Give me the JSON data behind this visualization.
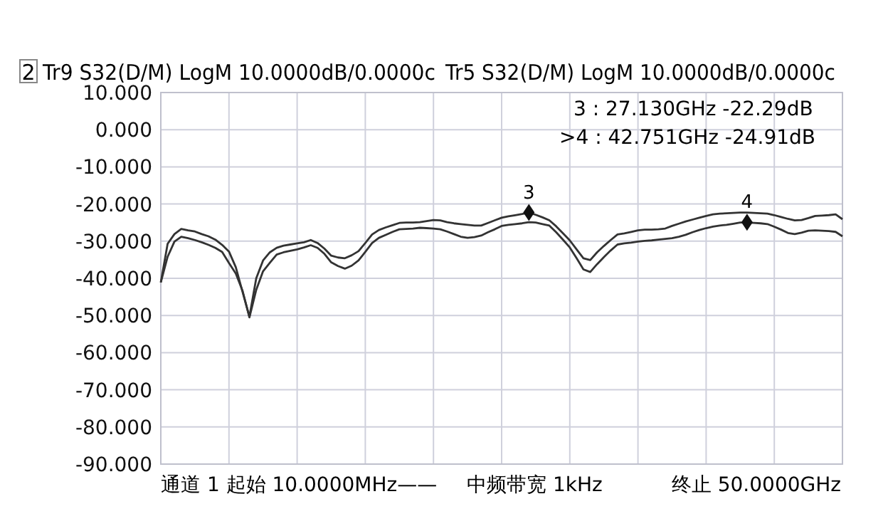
{
  "chart_data": {
    "type": "line",
    "annotations": [
      "2",
      "Tr9 S32(D/M) LogM 10.0000dB/0.0000c",
      "Tr5 S32(D/M) LogM 10.0000dB/0.0000c",
      "3 : 27.130GHz -22.29dB",
      ">4 : 42.751GHz -24.91dB",
      "通道 1 起始 10.0000MHz——",
      "中频带宽 1kHz",
      "终止 50.0000GHz",
      "3",
      "4"
    ],
    "categories": [
      null,
      null,
      null,
      null,
      null,
      null,
      null,
      null,
      null,
      null,
      null,
      null,
      null,
      null,
      null,
      null,
      null,
      null,
      null,
      null,
      null,
      null,
      null,
      null,
      null,
      null,
      null,
      null,
      null,
      null,
      null,
      null,
      null,
      null,
      null,
      null,
      null,
      null,
      null,
      null,
      null,
      null,
      null,
      null,
      null,
      null,
      null,
      null,
      null,
      null,
      null,
      null,
      null,
      null,
      null,
      null,
      null,
      null,
      null,
      null,
      null,
      null,
      null,
      null,
      null,
      null,
      null,
      null,
      null,
      null,
      null,
      null,
      null,
      null,
      null,
      null,
      null,
      null,
      null,
      null,
      null,
      null,
      null,
      null,
      null,
      null,
      null,
      null,
      null,
      null,
      null,
      null,
      null,
      null,
      null,
      null,
      null,
      null,
      null,
      null,
      null
    ],
    "series": [
      {
        "color": "#333333",
        "values": [
          -41.1,
          -30.7,
          -28.1,
          -26.7,
          -27.1,
          -27.4,
          -28.1,
          -28.7,
          -29.6,
          -31.0,
          -32.8,
          -37.0,
          -43.7,
          -50.3,
          -40.0,
          -35.2,
          -33.0,
          -31.8,
          -31.2,
          -30.9,
          -30.6,
          -30.3,
          -29.7,
          -30.5,
          -32.0,
          -33.9,
          -34.4,
          -34.6,
          -33.8,
          -32.7,
          -30.5,
          -28.2,
          -27.0,
          -26.3,
          -25.7,
          -25.1,
          -25.0,
          -25.0,
          -24.9,
          -24.6,
          -24.3,
          -24.4,
          -24.9,
          -25.2,
          -25.4,
          -25.6,
          -25.8,
          -25.8,
          -25.1,
          -24.4,
          -23.7,
          -23.3,
          -23.0,
          -22.7,
          -22.3,
          -22.9,
          -23.6,
          -24.4,
          -26.0,
          -27.9,
          -29.8,
          -32.2,
          -34.6,
          -35.1,
          -33.0,
          -31.3,
          -29.7,
          -28.2,
          -27.9,
          -27.5,
          -27.1,
          -26.9,
          -26.9,
          -26.8,
          -26.6,
          -25.9,
          -25.3,
          -24.7,
          -24.2,
          -23.7,
          -23.2,
          -22.8,
          -22.6,
          -22.5,
          -22.4,
          -22.3,
          -22.3,
          -22.4,
          -22.5,
          -22.6,
          -23.0,
          -23.5,
          -24.0,
          -24.4,
          -24.3,
          -23.8,
          -23.2,
          -23.1,
          -23.0,
          -22.8,
          -24.1
        ]
      },
      {
        "color": "#333333",
        "values": [
          -41.1,
          -34.2,
          -30.1,
          -28.8,
          -29.2,
          -29.7,
          -30.3,
          -31.0,
          -31.8,
          -32.9,
          -35.9,
          -38.7,
          -43.4,
          -50.5,
          -43.1,
          -38.1,
          -35.8,
          -33.6,
          -33.0,
          -32.6,
          -32.2,
          -31.7,
          -31.1,
          -31.8,
          -33.4,
          -35.7,
          -36.7,
          -37.4,
          -36.6,
          -35.2,
          -32.9,
          -30.5,
          -29.1,
          -28.3,
          -27.5,
          -26.8,
          -26.7,
          -26.6,
          -26.4,
          -26.5,
          -26.6,
          -26.8,
          -27.4,
          -28.1,
          -28.8,
          -29.1,
          -28.9,
          -28.5,
          -27.6,
          -26.8,
          -25.9,
          -25.6,
          -25.4,
          -25.2,
          -24.9,
          -25.0,
          -25.4,
          -25.8,
          -27.6,
          -29.6,
          -31.7,
          -34.6,
          -37.6,
          -38.3,
          -36.2,
          -34.3,
          -32.5,
          -30.9,
          -30.6,
          -30.4,
          -30.1,
          -29.9,
          -29.8,
          -29.6,
          -29.4,
          -29.2,
          -28.8,
          -28.3,
          -27.6,
          -27.0,
          -26.5,
          -26.1,
          -25.8,
          -25.6,
          -25.3,
          -25.0,
          -25.0,
          -25.1,
          -25.2,
          -25.4,
          -26.1,
          -26.9,
          -27.8,
          -28.1,
          -27.7,
          -27.2,
          -27.1,
          -27.2,
          -27.3,
          -27.5,
          -28.7
        ]
      },
      {
        "type": "scatter",
        "color": "#111111",
        "values": [
          null,
          null,
          null,
          null,
          null,
          null,
          null,
          null,
          null,
          null,
          null,
          null,
          null,
          null,
          null,
          null,
          null,
          null,
          null,
          null,
          null,
          null,
          null,
          null,
          null,
          null,
          null,
          null,
          null,
          null,
          null,
          null,
          null,
          null,
          null,
          null,
          null,
          null,
          null,
          null,
          null,
          null,
          null,
          null,
          null,
          null,
          null,
          null,
          null,
          null,
          null,
          null,
          null,
          null,
          -22.3,
          null,
          null,
          null,
          null,
          null,
          null,
          null,
          null,
          null,
          null,
          null,
          null,
          null,
          null,
          null,
          null,
          null,
          null,
          null,
          null,
          null,
          null,
          null,
          null,
          null,
          null,
          null,
          null,
          null,
          null,
          null,
          -24.9,
          null,
          null,
          null,
          null,
          null,
          null,
          null,
          null,
          null,
          null,
          null,
          null,
          null,
          null
        ]
      }
    ],
    "ylim": [
      -90,
      10
    ],
    "yticks": [
      {
        "value": 10,
        "label": "10.000"
      },
      {
        "value": 0,
        "label": "0.000"
      },
      {
        "value": -10,
        "label": "-10.000"
      },
      {
        "value": -20,
        "label": "-20.000"
      },
      {
        "value": -30,
        "label": "-30.000"
      },
      {
        "value": -40,
        "label": "-40.000"
      },
      {
        "value": -50,
        "label": "-50.000"
      },
      {
        "value": -60,
        "label": "-60.000"
      },
      {
        "value": -70,
        "label": "-70.000"
      },
      {
        "value": -80,
        "label": "-80.000"
      },
      {
        "value": -90,
        "label": "-90.000"
      }
    ],
    "grid": true,
    "line_style": "solid"
  }
}
